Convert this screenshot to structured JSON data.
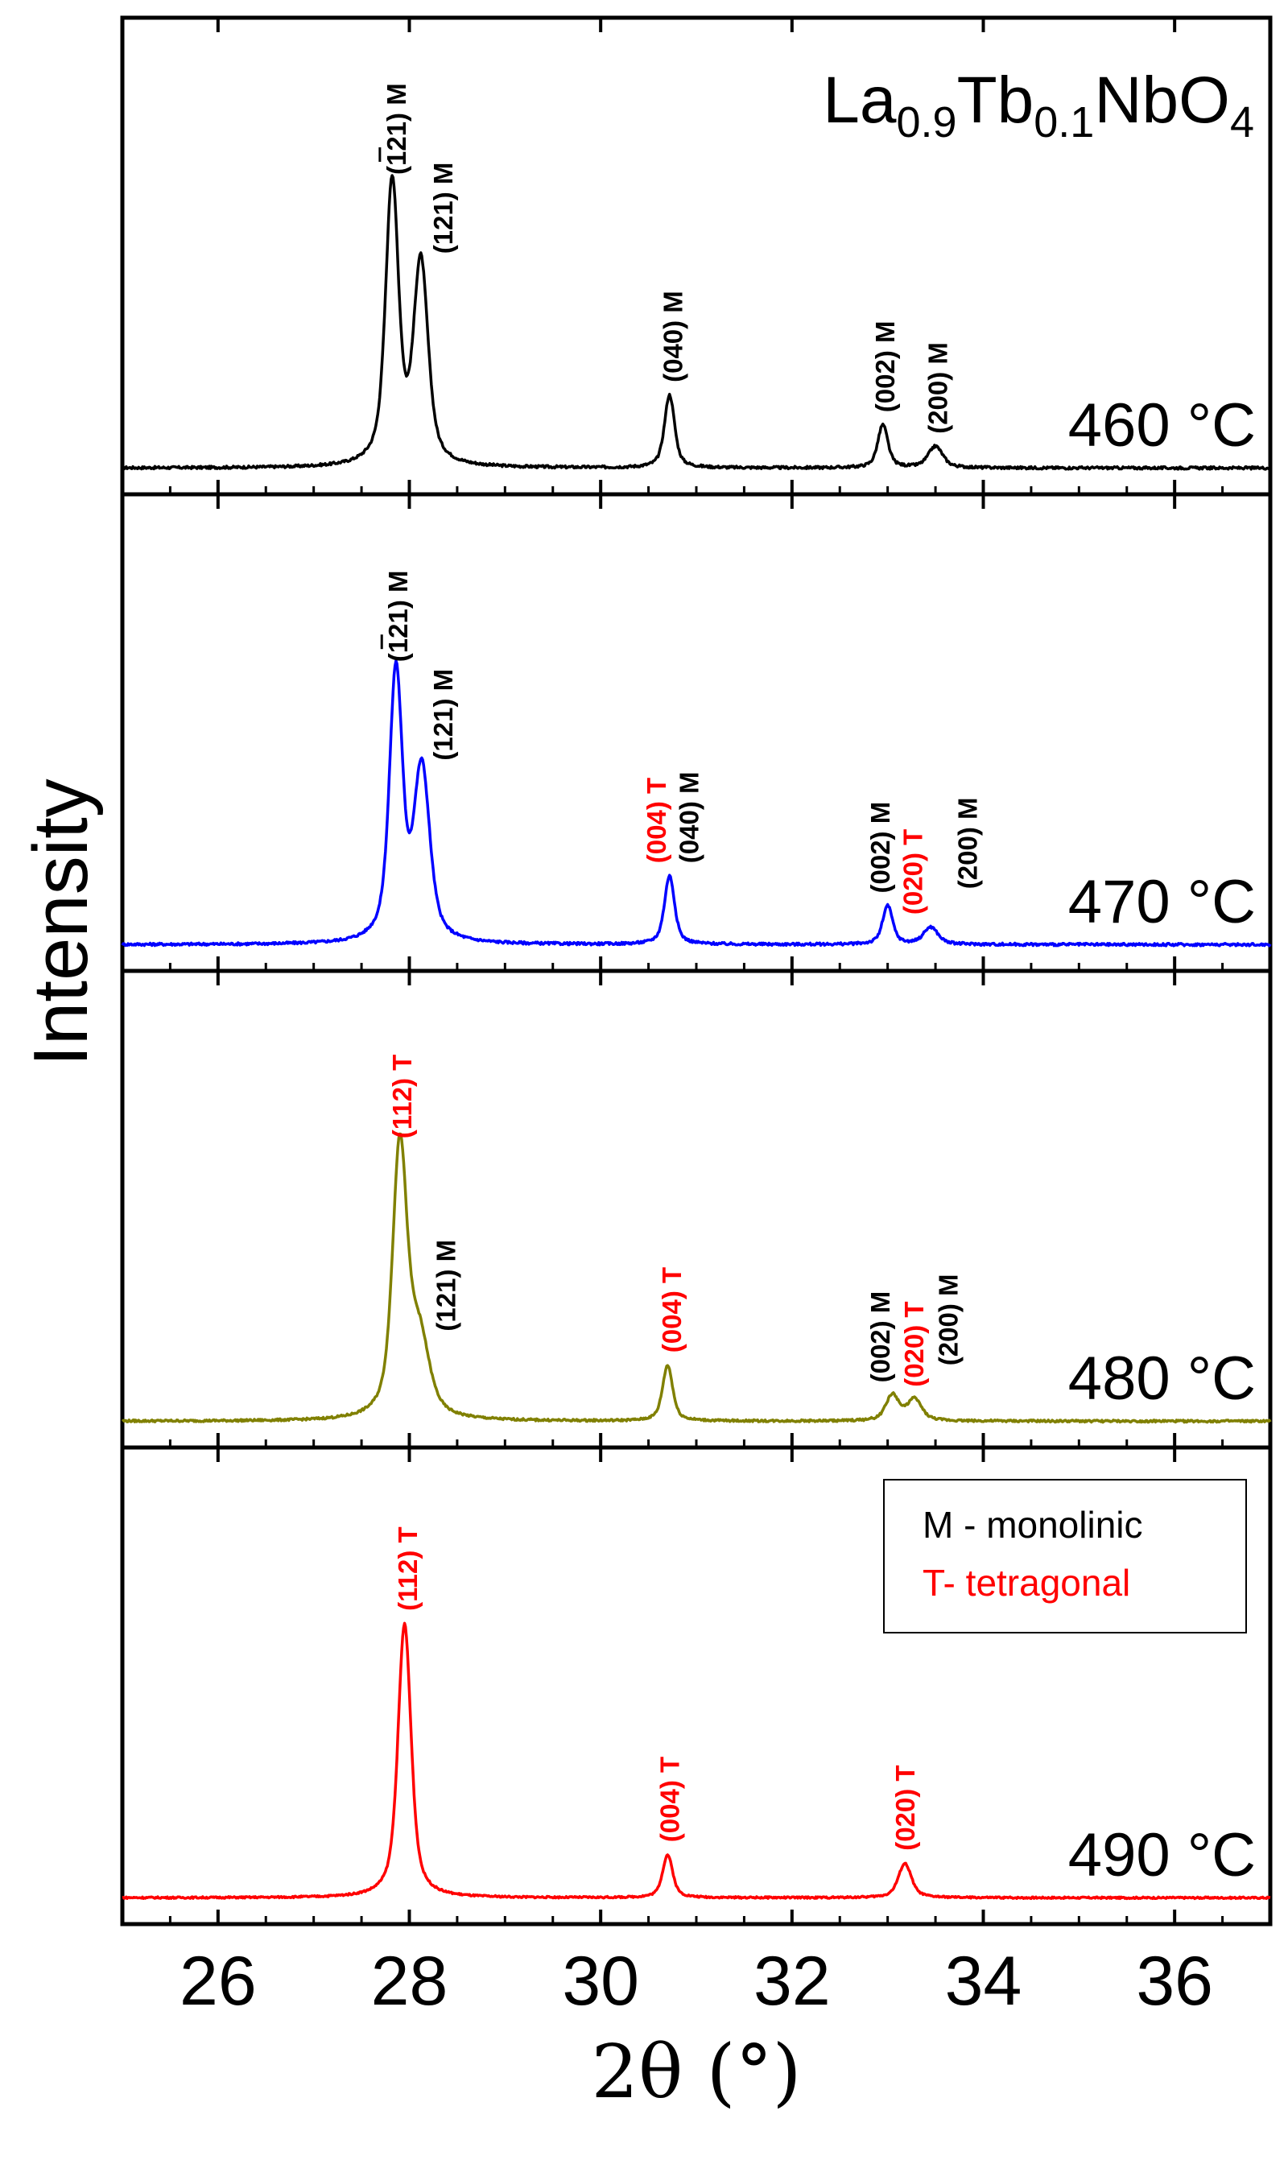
{
  "chart_data": {
    "type": "line",
    "title": "",
    "compound": {
      "base": "La",
      "sub1": "0.9",
      "mid": "Tb",
      "sub2": "0.1",
      "end": "NbO",
      "sub3": "4"
    },
    "xlabel": "2θ (°)",
    "ylabel": "Intensity",
    "xlim": [
      25,
      37
    ],
    "xticks": [
      26,
      28,
      30,
      32,
      34,
      36
    ],
    "xtick_labels": [
      "26",
      "28",
      "30",
      "32",
      "34",
      "36"
    ],
    "legend": {
      "position": "top-right of bottom panel",
      "entries": [
        {
          "text": "M - monolinic",
          "color": "#000000"
        },
        {
          "text": "T- tetragonal",
          "color": "#ff0000"
        }
      ]
    },
    "series": [
      {
        "name": "460 °C",
        "color": "#000000",
        "baseline": 0.02,
        "noise": 0.006,
        "peaks": [
          {
            "x": 27.82,
            "h": 0.66,
            "w": 0.09
          },
          {
            "x": 28.12,
            "h": 0.47,
            "w": 0.1
          },
          {
            "x": 30.72,
            "h": 0.17,
            "w": 0.07
          },
          {
            "x": 32.95,
            "h": 0.1,
            "w": 0.07
          },
          {
            "x": 33.5,
            "h": 0.05,
            "w": 0.1
          }
        ],
        "labels": [
          {
            "x": 27.86,
            "text": "(-121) M",
            "bar": true,
            "color": "#000000",
            "tier": 0
          },
          {
            "x": 28.35,
            "text": "(121) M",
            "color": "#000000",
            "tier": 1
          },
          {
            "x": 30.75,
            "text": "(040) M",
            "color": "#000000",
            "tier": 2
          },
          {
            "x": 32.97,
            "text": "(002) M",
            "color": "#000000",
            "tier": 3
          },
          {
            "x": 33.52,
            "text": "(200) M",
            "color": "#000000",
            "tier": 4
          }
        ]
      },
      {
        "name": "470 °C",
        "color": "#0000ff",
        "baseline": 0.02,
        "noise": 0.006,
        "peaks": [
          {
            "x": 27.86,
            "h": 0.63,
            "w": 0.09
          },
          {
            "x": 28.13,
            "h": 0.4,
            "w": 0.11
          },
          {
            "x": 30.72,
            "h": 0.16,
            "w": 0.07
          },
          {
            "x": 33.0,
            "h": 0.09,
            "w": 0.07
          },
          {
            "x": 33.45,
            "h": 0.04,
            "w": 0.1
          }
        ],
        "labels": [
          {
            "x": 27.88,
            "text": "(-121) M",
            "bar": true,
            "color": "#000000",
            "tier": 0
          },
          {
            "x": 28.35,
            "text": "(121) M",
            "color": "#000000",
            "tier": 1
          },
          {
            "x": 30.58,
            "text": "(004) T",
            "color": "#ff0000",
            "tier": 2
          },
          {
            "x": 30.92,
            "text": "(040) M",
            "color": "#000000",
            "tier": 3
          },
          {
            "x": 32.92,
            "text": "(002) M",
            "color": "#000000",
            "tier": 3
          },
          {
            "x": 33.26,
            "text": "(020) T",
            "color": "#ff0000",
            "tier": 4
          },
          {
            "x": 33.83,
            "text": "(200) M",
            "color": "#000000",
            "tier": 5
          }
        ]
      },
      {
        "name": "480 °C",
        "color": "#808000",
        "baseline": 0.02,
        "noise": 0.005,
        "peaks": [
          {
            "x": 27.9,
            "h": 0.63,
            "w": 0.1
          },
          {
            "x": 28.1,
            "h": 0.18,
            "w": 0.14
          },
          {
            "x": 30.7,
            "h": 0.13,
            "w": 0.07
          },
          {
            "x": 33.05,
            "h": 0.06,
            "w": 0.09
          },
          {
            "x": 33.28,
            "h": 0.05,
            "w": 0.1
          }
        ],
        "labels": [
          {
            "x": 27.92,
            "text": "(112) T",
            "color": "#ff0000",
            "tier": 0
          },
          {
            "x": 28.38,
            "text": "(121) M",
            "color": "#000000",
            "tier": 1
          },
          {
            "x": 30.74,
            "text": "(004) T",
            "color": "#ff0000",
            "tier": 2
          },
          {
            "x": 32.92,
            "text": "(002) M",
            "color": "#000000",
            "tier": 3
          },
          {
            "x": 33.27,
            "text": "(020) T",
            "color": "#ff0000",
            "tier": 4
          },
          {
            "x": 33.63,
            "text": "(200) M",
            "color": "#000000",
            "tier": 5
          }
        ]
      },
      {
        "name": "490 °C",
        "color": "#ff0000",
        "baseline": 0.02,
        "noise": 0.004,
        "peaks": [
          {
            "x": 27.95,
            "h": 0.64,
            "w": 0.09
          },
          {
            "x": 30.7,
            "h": 0.1,
            "w": 0.07
          },
          {
            "x": 33.18,
            "h": 0.08,
            "w": 0.09
          }
        ],
        "labels": [
          {
            "x": 27.98,
            "text": "(112) T",
            "color": "#ff0000",
            "tier": 0
          },
          {
            "x": 30.72,
            "text": "(004) T",
            "color": "#ff0000",
            "tier": 1
          },
          {
            "x": 33.18,
            "text": "(020) T",
            "color": "#ff0000",
            "tier": 2
          }
        ]
      }
    ]
  }
}
